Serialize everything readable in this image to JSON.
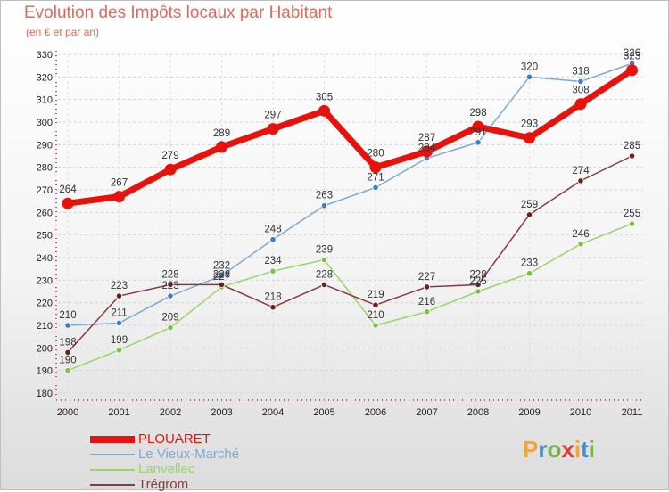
{
  "chart_data": {
    "type": "line",
    "title": "Evolution des Impôts locaux par Habitant",
    "subtitle": "(en € et par an)",
    "xlabel": "",
    "ylabel": "",
    "ylim": [
      180,
      330
    ],
    "y_ticks": [
      180,
      190,
      200,
      210,
      220,
      230,
      240,
      250,
      260,
      270,
      280,
      290,
      300,
      310,
      320,
      330
    ],
    "x": [
      "2000",
      "2001",
      "2002",
      "2003",
      "2004",
      "2005",
      "2006",
      "2007",
      "2008",
      "2009",
      "2010",
      "2011"
    ],
    "grid": "horizontal dashed",
    "legend_position": "bottom-left",
    "series": [
      {
        "name": "PLOUARET",
        "color": "#e8120c",
        "marker_color": "#e8120c",
        "width": "thick",
        "values": [
          264,
          267,
          279,
          289,
          297,
          305,
          280,
          287,
          298,
          293,
          308,
          323
        ]
      },
      {
        "name": "Le Vieux-Marché",
        "color": "#7fa8d6",
        "marker_color": "#3d7fc4",
        "width": "thin",
        "values": [
          210,
          211,
          223,
          232,
          248,
          263,
          271,
          284,
          291,
          320,
          318,
          326
        ]
      },
      {
        "name": "Lanvellec",
        "color": "#9bd46a",
        "marker_color": "#7cc242",
        "width": "thin",
        "values": [
          190,
          199,
          209,
          227,
          234,
          239,
          210,
          216,
          225,
          233,
          246,
          255
        ]
      },
      {
        "name": "Trégrom",
        "color": "#8a3a3a",
        "marker_color": "#6b1f1f",
        "width": "thin",
        "values": [
          198,
          223,
          228,
          228,
          218,
          228,
          219,
          227,
          228,
          259,
          274,
          285
        ]
      }
    ]
  },
  "brand": {
    "name": "Proxiti"
  }
}
